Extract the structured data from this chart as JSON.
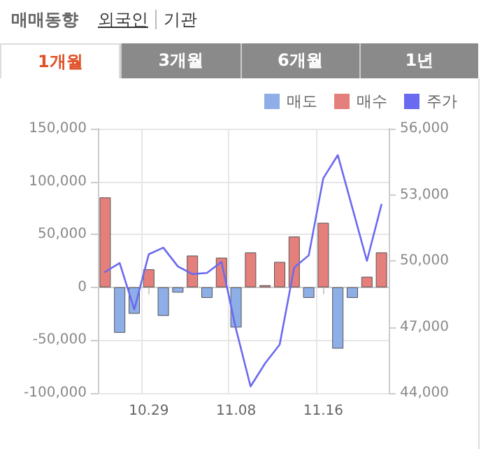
{
  "chart_data": {
    "type": "bar",
    "annotations": [
      "매매동향",
      "외국인",
      "기관",
      "1개월",
      "3개월",
      "6개월",
      "1년"
    ],
    "categories": [
      null,
      null,
      null,
      "10.29",
      null,
      null,
      null,
      null,
      null,
      "11.08",
      null,
      null,
      null,
      null,
      null,
      "11.16",
      null,
      null,
      null,
      null
    ],
    "series": [
      {
        "name": "매도",
        "color": "#8eaee8",
        "values": [
          null,
          -43000,
          -25000,
          null,
          -27000,
          -5000,
          null,
          -10000,
          null,
          -38000,
          null,
          null,
          null,
          null,
          -10000,
          null,
          -58000,
          -10000,
          null,
          null
        ]
      },
      {
        "name": "매수",
        "color": "#e57f7b",
        "values": [
          85000,
          null,
          null,
          17000,
          null,
          null,
          30000,
          null,
          28000,
          null,
          33000,
          2000,
          24000,
          48000,
          null,
          61000,
          null,
          null,
          10000,
          33000
        ]
      },
      {
        "name": "주가",
        "type": "line",
        "axis": "y2",
        "color": "#6a6af0",
        "values": [
          49500,
          49900,
          47800,
          50300,
          50600,
          49750,
          49400,
          49450,
          49950,
          46900,
          44300,
          45350,
          46200,
          49700,
          50250,
          53750,
          54800,
          52400,
          50000,
          52550
        ]
      }
    ],
    "ylim": [
      -100000,
      150000
    ],
    "yticks": [
      {
        "value": -100000,
        "label": "-100,000"
      },
      {
        "value": -50000,
        "label": "-50,000"
      },
      0,
      {
        "value": 50000,
        "label": "50,000"
      },
      {
        "value": 100000,
        "label": "100,000"
      },
      {
        "value": 150000,
        "label": "150,000"
      }
    ],
    "y2lim": [
      44000,
      56000
    ],
    "y2ticks": [
      {
        "value": 44000,
        "label": "44,000"
      },
      {
        "value": 47000,
        "label": "47,000"
      },
      {
        "value": 50000,
        "label": "50,000"
      },
      {
        "value": 53000,
        "label": "53,000"
      },
      {
        "value": 56000,
        "label": "56,000"
      }
    ],
    "grid": true,
    "legend": "top right",
    "marker": "none"
  }
}
